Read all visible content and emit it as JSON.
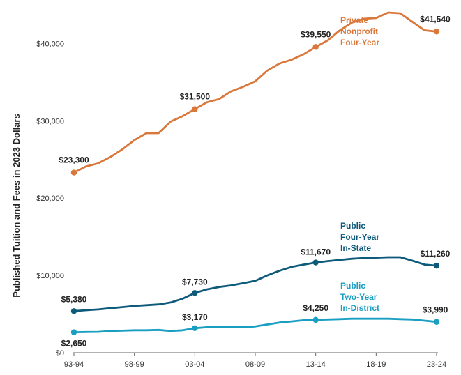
{
  "chart_data": {
    "type": "line",
    "title": "",
    "xlabel": "",
    "ylabel": "Published Tuition and Fees in 2023 Dollars",
    "ylim": [
      0,
      44000
    ],
    "yticks": [
      {
        "value": 0,
        "label": "$0"
      },
      {
        "value": 10000,
        "label": "$10,000"
      },
      {
        "value": 20000,
        "label": "$20,000"
      },
      {
        "value": 30000,
        "label": "$30,000"
      },
      {
        "value": 40000,
        "label": "$40,000"
      }
    ],
    "x": [
      "93-94",
      "94-95",
      "95-96",
      "96-97",
      "97-98",
      "98-99",
      "99-00",
      "00-01",
      "01-02",
      "02-03",
      "03-04",
      "04-05",
      "05-06",
      "06-07",
      "07-08",
      "08-09",
      "09-10",
      "10-11",
      "11-12",
      "12-13",
      "13-14",
      "14-15",
      "15-16",
      "16-17",
      "17-18",
      "18-19",
      "19-20",
      "20-21",
      "21-22",
      "22-23",
      "23-24"
    ],
    "xtick_labels": [
      "93-94",
      "98-99",
      "03-04",
      "08-09",
      "13-14",
      "18-19",
      "23-24"
    ],
    "series": [
      {
        "key": "private",
        "name_lines": [
          "Private",
          "Nonprofit",
          "Four-Year"
        ],
        "color": "#d9783a",
        "values": [
          23300,
          24100,
          24500,
          25300,
          26300,
          27500,
          28400,
          28400,
          29900,
          30600,
          31500,
          32400,
          32800,
          33800,
          34400,
          35100,
          36500,
          37400,
          37900,
          38600,
          39550,
          40400,
          41700,
          42700,
          43200,
          43300,
          44000,
          43900,
          42800,
          41700,
          41540
        ],
        "labels": [
          {
            "index": 0,
            "text": "$23,300"
          },
          {
            "index": 10,
            "text": "$31,500"
          },
          {
            "index": 20,
            "text": "$39,550"
          },
          {
            "index": 30,
            "text": "$41,540"
          }
        ]
      },
      {
        "key": "public4",
        "name_lines": [
          "Public",
          "Four-Year",
          "In-State"
        ],
        "color": "#0e5a7a",
        "values": [
          5380,
          5500,
          5600,
          5750,
          5900,
          6050,
          6150,
          6250,
          6500,
          7000,
          7730,
          8200,
          8500,
          8700,
          9000,
          9300,
          10000,
          10600,
          11100,
          11400,
          11670,
          11850,
          12000,
          12150,
          12250,
          12300,
          12350,
          12350,
          11900,
          11400,
          11260
        ],
        "labels": [
          {
            "index": 0,
            "text": "$5,380"
          },
          {
            "index": 10,
            "text": "$7,730"
          },
          {
            "index": 20,
            "text": "$11,670"
          },
          {
            "index": 30,
            "text": "$11,260"
          }
        ]
      },
      {
        "key": "public2",
        "name_lines": [
          "Public",
          "Two-Year",
          "In-District"
        ],
        "color": "#1a9fc3",
        "values": [
          2650,
          2680,
          2700,
          2800,
          2850,
          2900,
          2900,
          2950,
          2800,
          2900,
          3170,
          3300,
          3350,
          3350,
          3300,
          3400,
          3650,
          3900,
          4050,
          4200,
          4250,
          4300,
          4350,
          4400,
          4400,
          4400,
          4400,
          4350,
          4300,
          4150,
          3990
        ],
        "labels": [
          {
            "index": 0,
            "text": "$2,650"
          },
          {
            "index": 10,
            "text": "$3,170"
          },
          {
            "index": 20,
            "text": "$4,250"
          },
          {
            "index": 30,
            "text": "$3,990"
          }
        ]
      }
    ],
    "grid": false,
    "legend": "inline"
  }
}
